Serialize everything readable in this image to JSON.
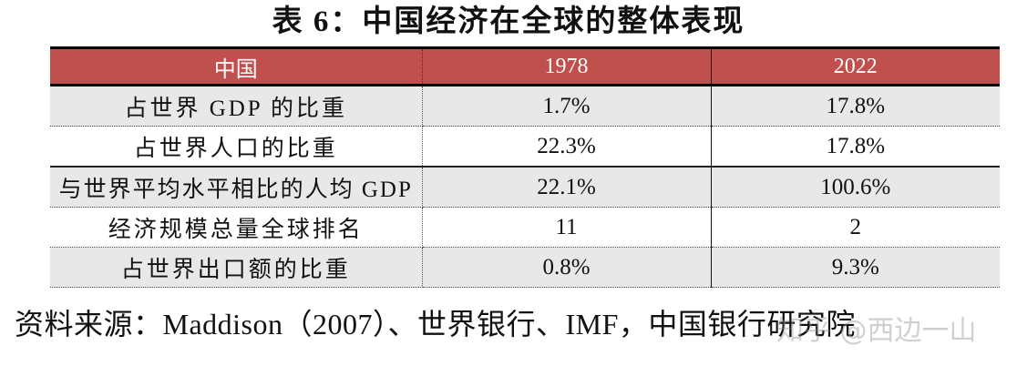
{
  "title": "表 6：中国经济在全球的整体表现",
  "table": {
    "headers": [
      "中国",
      "1978",
      "2022"
    ],
    "rows": [
      {
        "label": "占世界 GDP 的比重",
        "y1978": "1.7%",
        "y2022": "17.8%"
      },
      {
        "label": "占世界人口的比重",
        "y1978": "22.3%",
        "y2022": "17.8%"
      },
      {
        "label": "与世界平均水平相比的人均 GDP",
        "y1978": "22.1%",
        "y2022": "100.6%"
      },
      {
        "label": "经济规模总量全球排名",
        "y1978": "11",
        "y2022": "2"
      },
      {
        "label": "占世界出口额的比重",
        "y1978": "0.8%",
        "y2022": "9.3%"
      }
    ]
  },
  "source": "资料来源：Maddison（2007）、世界银行、IMF，中国银行研究院",
  "watermark": "知乎 @西边一山",
  "colors": {
    "header_bg": "#c0504d",
    "header_text": "#ffffff",
    "shaded_row": "#e8e8e8"
  }
}
